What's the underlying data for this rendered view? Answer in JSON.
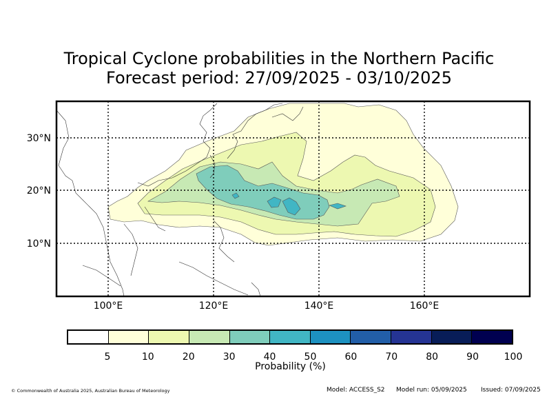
{
  "title": {
    "line1": "Tropical Cyclone probabilities in the Northern Pacific",
    "line2": "Forecast period: 27/09/2025 - 03/10/2025"
  },
  "map": {
    "lon_range": [
      90,
      180
    ],
    "lat_range": [
      0,
      37
    ],
    "lon_ticks": [
      "100°E",
      "120°E",
      "140°E",
      "160°E"
    ],
    "lat_ticks": [
      "30°N",
      "20°N",
      "10°N"
    ],
    "gridlines": "dotted"
  },
  "colorbar": {
    "label": "Probability (%)",
    "ticks": [
      "5",
      "10",
      "20",
      "30",
      "40",
      "50",
      "60",
      "70",
      "80",
      "90",
      "100"
    ],
    "colors": [
      "#ffffff",
      "#ffffd9",
      "#edf8b1",
      "#c7e9b4",
      "#7fcdbb",
      "#41b6c4",
      "#1d91c0",
      "#225ea8",
      "#253494",
      "#081d58",
      "#000050"
    ]
  },
  "footer": {
    "copyright": "© Commonwealth of Australia 2025, Australian Bureau of Meteorology",
    "model": "Model: ACCESS_S2",
    "model_run": "Model run: 05/09/2025",
    "issued": "Issued: 07/09/2025"
  }
}
